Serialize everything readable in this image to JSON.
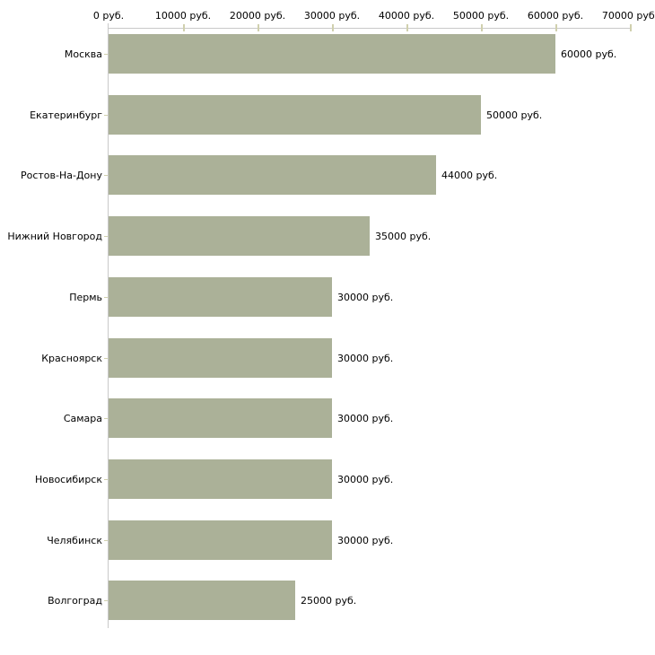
{
  "chart_data": {
    "type": "bar",
    "orientation": "horizontal",
    "title": "",
    "categories": [
      "Москва",
      "Екатеринбург",
      "Ростов-На-Дону",
      "Нижний Новгород",
      "Пермь",
      "Красноярск",
      "Самара",
      "Новосибирск",
      "Челябинск",
      "Волгоград"
    ],
    "values": [
      60000,
      50000,
      44000,
      35000,
      30000,
      30000,
      30000,
      30000,
      30000,
      25000
    ],
    "value_labels": [
      "60000 руб.",
      "50000 руб.",
      "44000 руб.",
      "35000 руб.",
      "30000 руб.",
      "30000 руб.",
      "30000 руб.",
      "30000 руб.",
      "30000 руб.",
      "25000 руб."
    ],
    "unit": "руб.",
    "x_axis": {
      "position": "top",
      "min": 0,
      "max": 70000,
      "tick_values": [
        0,
        10000,
        20000,
        30000,
        40000,
        50000,
        60000,
        70000
      ],
      "tick_labels": [
        "0 руб.",
        "10000 руб.",
        "20000 руб.",
        "30000 руб.",
        "40000 руб.",
        "50000 руб.",
        "60000 руб.",
        "70000 руб."
      ]
    },
    "grid": false,
    "legend": false,
    "colors": {
      "bar": "#abb198",
      "axis_line": "#c9c9c9",
      "tick": "#d0d0ae",
      "text": "#000000",
      "background": "#ffffff"
    }
  }
}
